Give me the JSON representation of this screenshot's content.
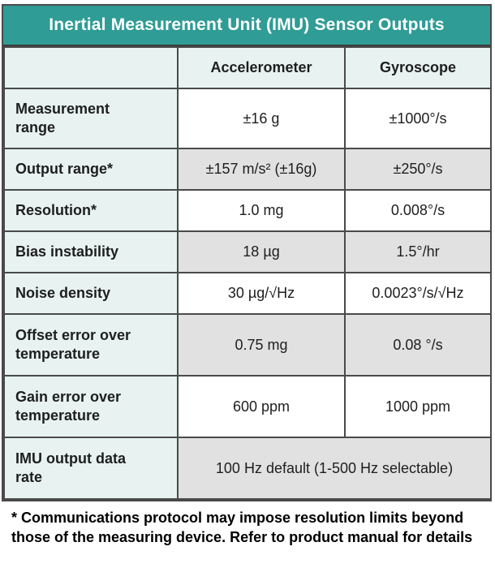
{
  "chart_data": {
    "type": "table",
    "title": "Inertial Measurement Unit (IMU) Sensor Outputs",
    "columns": {
      "label": "",
      "accelerometer": "Accelerometer",
      "gyroscope": "Gyroscope"
    },
    "rows": [
      {
        "label": "Measurement range",
        "accelerometer": "±16 g",
        "gyroscope": "±1000°/s"
      },
      {
        "label": "Output range*",
        "accelerometer": "±157 m/s² (±16g)",
        "gyroscope": "±250°/s"
      },
      {
        "label": "Resolution*",
        "accelerometer": "1.0 mg",
        "gyroscope": "0.008°/s"
      },
      {
        "label": "Bias instability",
        "accelerometer": "18 µg",
        "gyroscope": "1.5°/hr"
      },
      {
        "label": "Noise density",
        "accelerometer": "30 µg/√Hz",
        "gyroscope": "0.0023°/s/√Hz"
      },
      {
        "label": "Offset error over temperature",
        "accelerometer": "0.75 mg",
        "gyroscope": "0.08 °/s"
      },
      {
        "label": "Gain error over temperature",
        "accelerometer": "600 ppm",
        "gyroscope": "1000 ppm"
      },
      {
        "label": "IMU output data rate",
        "combined": "100 Hz default (1-500 Hz selectable)"
      }
    ],
    "footnote": "* Communications protocol may impose resolution limits beyond those of the measuring device. Refer to product manual for details",
    "layout_hints": {
      "legend_position": "none",
      "grid": "full-borders",
      "alternating_row_shading": [
        "#ffffff",
        "#e1e1e2"
      ]
    }
  },
  "colors": {
    "title_bar_background": "#2f9c95",
    "title_text": "#ffffff",
    "label_column_background": "#e7f2f1",
    "shaded_cell_background": "#e1e1e2",
    "white_cell_background": "#ffffff",
    "border": "#4a4a4a",
    "body_text": "#1e1e1e"
  }
}
